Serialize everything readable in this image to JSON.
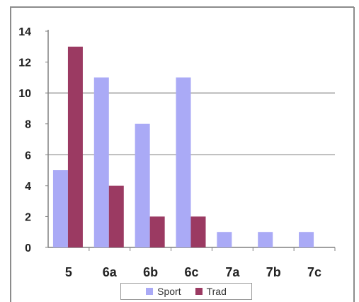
{
  "colors": {
    "sport": "#aaaaf6",
    "trad": "#9b3a62",
    "gridline": "#7a7a7a",
    "axis": "#808080",
    "frame_border": "#8c8c8c"
  },
  "chart_data": {
    "type": "bar",
    "title": "",
    "xlabel": "",
    "ylabel": "",
    "categories": [
      "5",
      "6a",
      "6b",
      "6c",
      "7a",
      "7b",
      "7c"
    ],
    "series": [
      {
        "name": "Sport",
        "values": [
          5,
          11,
          8,
          11,
          1,
          1,
          1
        ]
      },
      {
        "name": "Trad",
        "values": [
          13,
          4,
          2,
          2,
          0,
          0,
          0
        ]
      }
    ],
    "ylim": [
      0,
      14
    ],
    "yticks": [
      "0",
      "2",
      "4",
      "6",
      "8",
      "10",
      "12",
      "14"
    ],
    "grid_lines_at": [
      6,
      10
    ],
    "grid": true,
    "legend_position": "bottom"
  }
}
